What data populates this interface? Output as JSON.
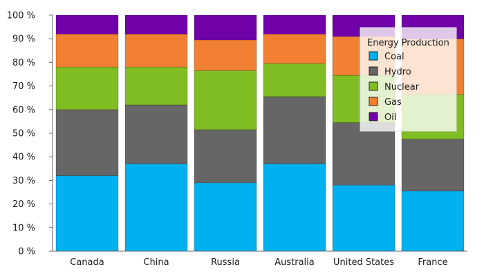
{
  "chart_data": {
    "type": "bar",
    "stacked": "percent",
    "categories": [
      "Canada",
      "China",
      "Russia",
      "Australia",
      "United States",
      "France"
    ],
    "series": [
      {
        "name": "Coal",
        "color": "#00b0ef",
        "values": [
          32,
          37,
          29,
          37,
          28,
          25.5
        ]
      },
      {
        "name": "Hydro",
        "color": "#666666",
        "values": [
          28,
          25,
          22.5,
          28.5,
          26.5,
          22
        ]
      },
      {
        "name": "Nuclear",
        "color": "#7fbd22",
        "values": [
          18,
          16,
          25,
          14,
          20,
          19
        ]
      },
      {
        "name": "Gas",
        "color": "#f28033",
        "values": [
          14,
          14,
          13,
          12.5,
          16.5,
          23.5
        ]
      },
      {
        "name": "Oil",
        "color": "#7000a8",
        "values": [
          8,
          8,
          10.5,
          8,
          9,
          10
        ]
      }
    ],
    "yticks": [
      "0 %",
      "10 %",
      "20 %",
      "30 %",
      "40 %",
      "50 %",
      "60 %",
      "70 %",
      "80 %",
      "90 %",
      "100 %"
    ],
    "ylim": [
      0,
      100
    ],
    "legend": {
      "title": "Energy Production",
      "placement": "top-right"
    },
    "grid": false,
    "title": "",
    "xlabel": "",
    "ylabel": ""
  }
}
